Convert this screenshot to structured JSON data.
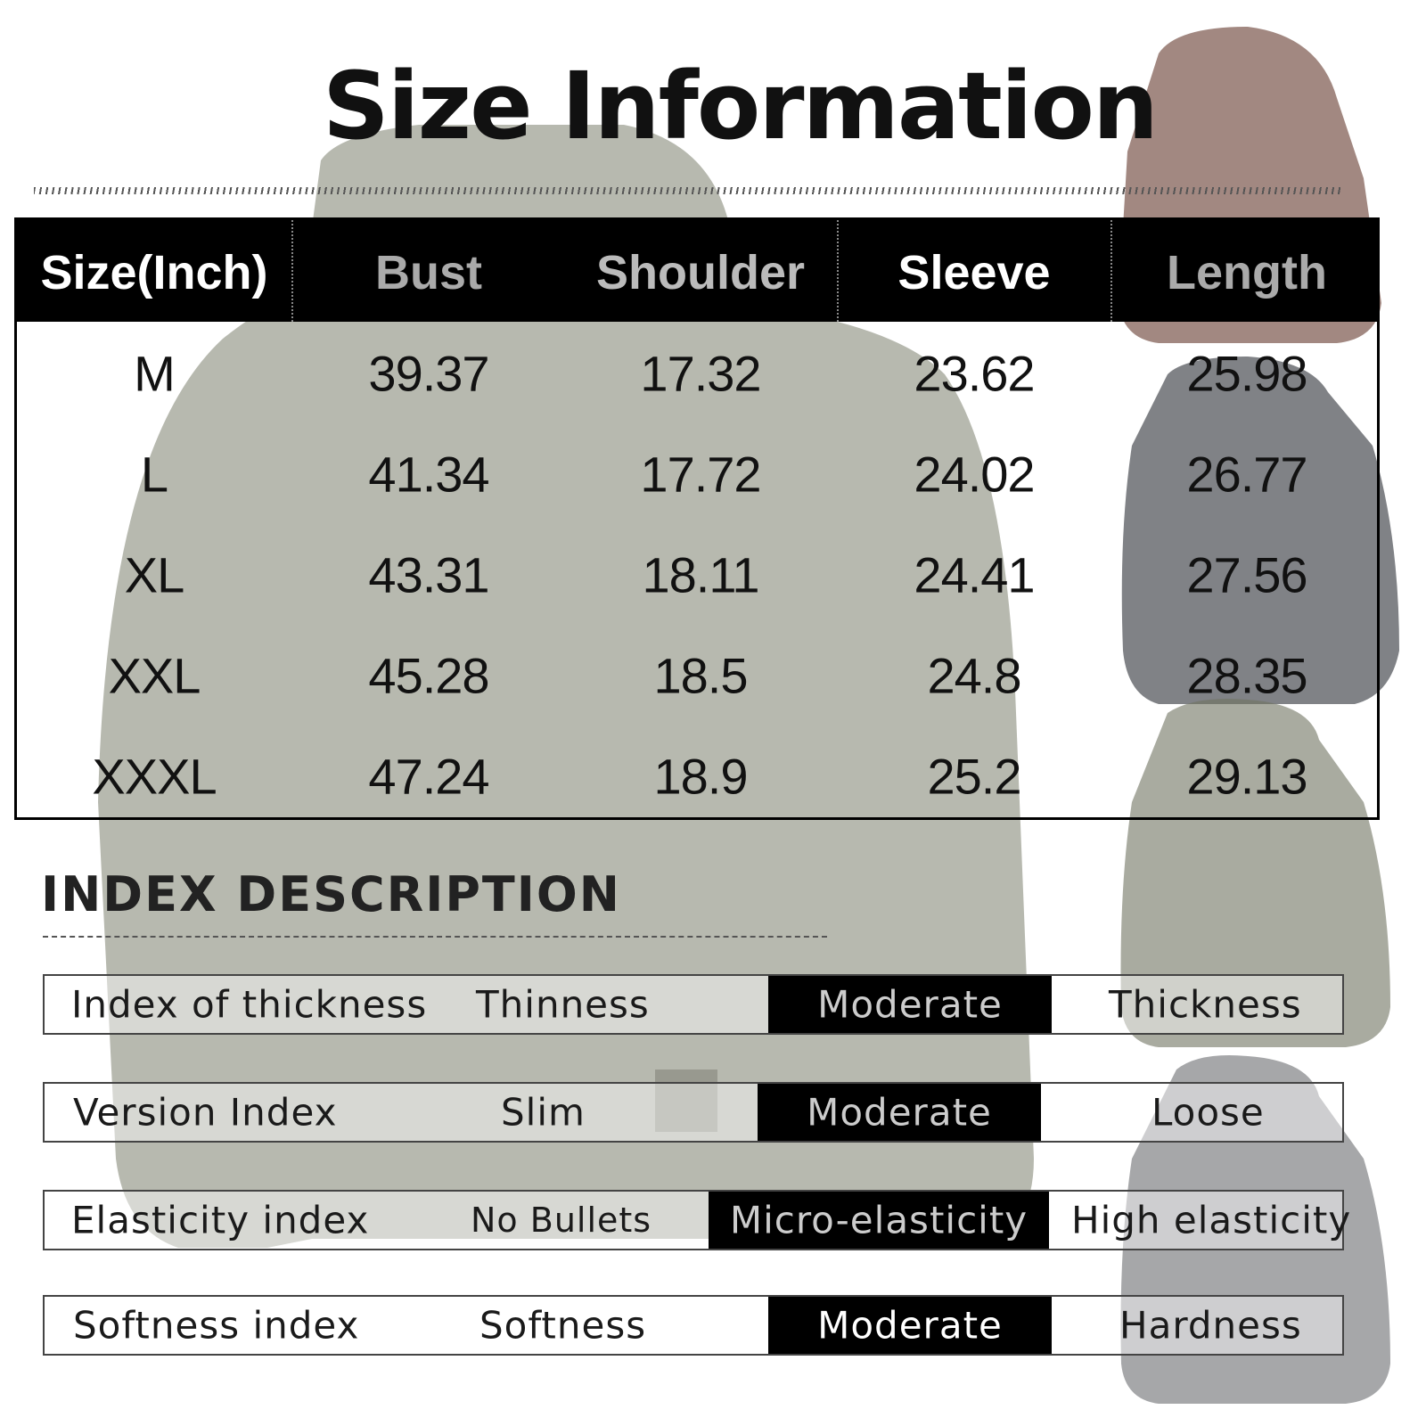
{
  "title": "Size Information",
  "size_table": {
    "headers": [
      "Size(Inch)",
      "Bust",
      "Shoulder",
      "Sleeve",
      "Length"
    ],
    "rows": [
      [
        "M",
        "39.37",
        "17.32",
        "23.62",
        "25.98"
      ],
      [
        "L",
        "41.34",
        "17.72",
        "24.02",
        "26.77"
      ],
      [
        "XL",
        "43.31",
        "18.11",
        "24.41",
        "27.56"
      ],
      [
        "XXL",
        "45.28",
        "18.5",
        "24.8",
        "28.35"
      ],
      [
        "XXXL",
        "47.24",
        "18.9",
        "25.2",
        "29.13"
      ]
    ]
  },
  "index": {
    "title": "INDEX DESCRIPTION",
    "rows": [
      {
        "label": "Index of thickness",
        "low": "Thinness",
        "selected": "Moderate",
        "high": "Thickness"
      },
      {
        "label": "Version Index",
        "low": "Slim",
        "selected": "Moderate",
        "high": "Loose"
      },
      {
        "label": "Elasticity index",
        "low": "No Bullets",
        "selected": "Micro-elasticity",
        "high": "High elasticity"
      },
      {
        "label": "Softness index",
        "low": "Softness",
        "selected": "Moderate",
        "high": "Hardness"
      }
    ]
  },
  "colors": {
    "olive": "#6f7360",
    "brown": "#8b6a62",
    "charcoal": "#4a4d52",
    "gray": "#6b6d70"
  }
}
